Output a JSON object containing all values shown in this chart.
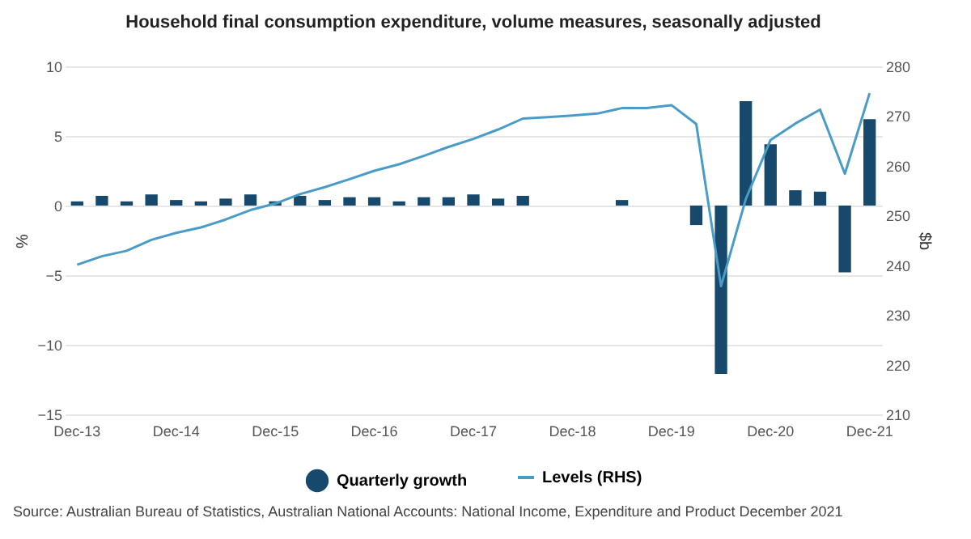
{
  "chart_data": {
    "type": "bar",
    "title": "Household final consumption expenditure, volume measures, seasonally adjusted",
    "categories": [
      "Dec-13",
      null,
      null,
      null,
      "Dec-14",
      null,
      null,
      null,
      "Dec-15",
      null,
      null,
      null,
      "Dec-16",
      null,
      null,
      null,
      "Dec-17",
      null,
      null,
      null,
      "Dec-18",
      null,
      null,
      null,
      "Dec-19",
      null,
      null,
      null,
      "Dec-20",
      null,
      null,
      null,
      "Dec-21"
    ],
    "series": [
      {
        "name": "Quarterly growth",
        "color": "#16496b",
        "values": [
          0.3,
          0.7,
          0.3,
          0.8,
          0.4,
          0.3,
          0.5,
          0.8,
          0.3,
          0.7,
          0.4,
          0.6,
          0.6,
          0.3,
          0.6,
          0.6,
          0.8,
          0.5,
          0.7,
          0,
          0,
          0,
          0.4,
          0,
          0,
          -1.4,
          -12.1,
          7.5,
          4.4,
          1.1,
          1.0,
          -4.8,
          6.2
        ]
      },
      {
        "name": "Levels (RHS)",
        "type": "line",
        "axis": "y2",
        "color": "#4a9cc8",
        "values": [
          240.1,
          241.8,
          242.9,
          245.1,
          246.5,
          247.6,
          249.2,
          251.1,
          252.4,
          254.3,
          255.7,
          257.3,
          259.0,
          260.3,
          262.0,
          263.8,
          265.4,
          267.3,
          269.5,
          269.8,
          270.1,
          270.5,
          271.6,
          271.6,
          272.2,
          268.4,
          235.8,
          253.3,
          265.2,
          268.5,
          271.3,
          258.4,
          274.6
        ]
      }
    ],
    "ylabel": "%",
    "y2label": "$b",
    "ylim": [
      -15,
      10
    ],
    "yticks": [
      -15,
      -10,
      -5,
      0,
      5,
      10
    ],
    "y2lim": [
      210,
      280
    ],
    "y2ticks": [
      210,
      220,
      230,
      240,
      250,
      260,
      270,
      280
    ],
    "grid": "y",
    "legend": "bottom",
    "annotations": [
      "Source: Australian Bureau of Statistics, Australian National Accounts: National Income, Expenditure and Product December 2021"
    ]
  }
}
